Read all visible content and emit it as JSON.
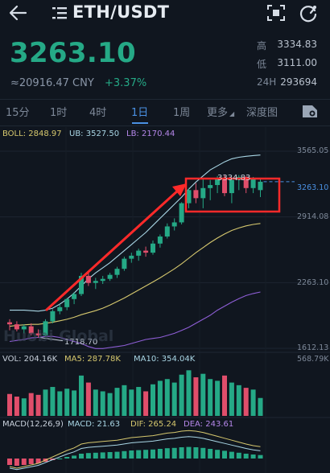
{
  "header": {
    "pair": "ETH/USDT",
    "back_icon": "arrow-left-icon",
    "menu_icon": "list-icon",
    "scan_icon": "scan-icon",
    "refresh_icon": "refresh-icon"
  },
  "ticker": {
    "last_price": "3263.10",
    "cny_price": "≈20916.47 CNY",
    "change": "+3.37%",
    "stats": [
      {
        "label": "高",
        "value": "3334.83"
      },
      {
        "label": "低",
        "value": "3111.00"
      },
      {
        "label": "24H",
        "value": "293694"
      }
    ]
  },
  "tabs": [
    {
      "label": "15分",
      "active": false
    },
    {
      "label": "1时",
      "active": false
    },
    {
      "label": "4时",
      "active": false
    },
    {
      "label": "1日",
      "active": true
    },
    {
      "label": "1周",
      "active": false
    },
    {
      "label": "更多",
      "active": false
    },
    {
      "label": "深度图",
      "active": false
    }
  ],
  "indicators": {
    "boll": "BOLL: 2848.97",
    "ub": "UB: 3527.50",
    "lb": "LB: 2170.44",
    "vol": "VOL: 204.16K",
    "ma5": "MA5: 287.78K",
    "ma10": "MA10: 354.04K",
    "macd_params": "MACD(12,26,9)",
    "macd": "MACD: 21.63",
    "dif": "DIF: 265.24",
    "dea": "DEA: 243.61"
  },
  "axis": {
    "price_ticks": [
      "3565.05",
      "2914.08",
      "2263.10",
      "1612.13"
    ],
    "volume_max": "568.79K",
    "current_price_tag": "3263.10",
    "high_label": "3334.83",
    "low_label": "1718.70"
  },
  "watermark": "Huobi Global",
  "colors": {
    "up": "#25a986",
    "down": "#e04e6b",
    "accent": "#4a90e2",
    "boll_mid": "#d6c86e",
    "boll_up": "#a9d6e5",
    "boll_low": "#8e5ed6",
    "annotation": "#ff2a2a"
  },
  "chart_data": {
    "type": "candlestick",
    "y_range": [
      1612.13,
      3565.05
    ],
    "candles": [
      {
        "o": 1870,
        "h": 1900,
        "l": 1790,
        "c": 1850
      },
      {
        "o": 1850,
        "h": 1880,
        "l": 1780,
        "c": 1800
      },
      {
        "o": 1800,
        "h": 1850,
        "l": 1760,
        "c": 1830
      },
      {
        "o": 1830,
        "h": 1860,
        "l": 1740,
        "c": 1760
      },
      {
        "o": 1760,
        "h": 1800,
        "l": 1718.7,
        "c": 1740
      },
      {
        "o": 1740,
        "h": 1900,
        "l": 1730,
        "c": 1880
      },
      {
        "o": 1880,
        "h": 2000,
        "l": 1860,
        "c": 1980
      },
      {
        "o": 1980,
        "h": 2050,
        "l": 1950,
        "c": 2020
      },
      {
        "o": 2020,
        "h": 2110,
        "l": 1990,
        "c": 2100
      },
      {
        "o": 2100,
        "h": 2170,
        "l": 2050,
        "c": 2150
      },
      {
        "o": 2150,
        "h": 2360,
        "l": 2130,
        "c": 2330
      },
      {
        "o": 2330,
        "h": 2380,
        "l": 2230,
        "c": 2260
      },
      {
        "o": 2260,
        "h": 2310,
        "l": 2200,
        "c": 2280
      },
      {
        "o": 2280,
        "h": 2330,
        "l": 2250,
        "c": 2300
      },
      {
        "o": 2300,
        "h": 2360,
        "l": 2280,
        "c": 2340
      },
      {
        "o": 2340,
        "h": 2420,
        "l": 2310,
        "c": 2400
      },
      {
        "o": 2400,
        "h": 2520,
        "l": 2380,
        "c": 2500
      },
      {
        "o": 2500,
        "h": 2560,
        "l": 2460,
        "c": 2530
      },
      {
        "o": 2530,
        "h": 2600,
        "l": 2480,
        "c": 2580
      },
      {
        "o": 2580,
        "h": 2620,
        "l": 2520,
        "c": 2560
      },
      {
        "o": 2560,
        "h": 2680,
        "l": 2540,
        "c": 2650
      },
      {
        "o": 2650,
        "h": 2740,
        "l": 2610,
        "c": 2720
      },
      {
        "o": 2720,
        "h": 2850,
        "l": 2700,
        "c": 2820
      },
      {
        "o": 2820,
        "h": 2900,
        "l": 2780,
        "c": 2860
      },
      {
        "o": 2860,
        "h": 3060,
        "l": 2840,
        "c": 3050
      },
      {
        "o": 3050,
        "h": 3200,
        "l": 3000,
        "c": 3180
      },
      {
        "o": 3180,
        "h": 3250,
        "l": 3050,
        "c": 3100
      },
      {
        "o": 3100,
        "h": 3300,
        "l": 3000,
        "c": 3200
      },
      {
        "o": 3200,
        "h": 3280,
        "l": 3080,
        "c": 3230
      },
      {
        "o": 3230,
        "h": 3320,
        "l": 3150,
        "c": 3290
      },
      {
        "o": 3290,
        "h": 3334.83,
        "l": 3120,
        "c": 3150
      },
      {
        "o": 3150,
        "h": 3300,
        "l": 3050,
        "c": 3280
      },
      {
        "o": 3280,
        "h": 3330,
        "l": 3180,
        "c": 3310
      },
      {
        "o": 3310,
        "h": 3320,
        "l": 3150,
        "c": 3200
      },
      {
        "o": 3200,
        "h": 3310,
        "l": 3150,
        "c": 3290
      },
      {
        "o": 3180,
        "h": 3300,
        "l": 3111.0,
        "c": 3263.1
      }
    ],
    "boll_mid": [
      1830,
      1840,
      1845,
      1850,
      1850,
      1860,
      1870,
      1885,
      1900,
      1920,
      1945,
      1965,
      1985,
      2010,
      2040,
      2075,
      2110,
      2150,
      2190,
      2230,
      2270,
      2310,
      2355,
      2400,
      2450,
      2505,
      2560,
      2610,
      2660,
      2705,
      2745,
      2780,
      2805,
      2825,
      2840,
      2848.97
    ],
    "boll_up": [
      1990,
      1990,
      1990,
      1985,
      1980,
      1990,
      2010,
      2050,
      2100,
      2160,
      2230,
      2300,
      2360,
      2410,
      2460,
      2520,
      2580,
      2640,
      2700,
      2760,
      2830,
      2900,
      2970,
      3040,
      3110,
      3190,
      3260,
      3320,
      3380,
      3420,
      3460,
      3490,
      3505,
      3515,
      3522,
      3527.5
    ],
    "boll_low": [
      1680,
      1690,
      1700,
      1715,
      1720,
      1730,
      1730,
      1720,
      1700,
      1680,
      1660,
      1630,
      1610,
      1610,
      1620,
      1630,
      1640,
      1660,
      1680,
      1700,
      1710,
      1720,
      1740,
      1760,
      1790,
      1820,
      1860,
      1900,
      1940,
      1990,
      2030,
      2070,
      2105,
      2135,
      2155,
      2170.44
    ],
    "volume_max": 568.79,
    "volumes": [
      250,
      220,
      200,
      260,
      240,
      300,
      330,
      280,
      310,
      290,
      460,
      380,
      300,
      280,
      260,
      320,
      350,
      300,
      330,
      280,
      360,
      400,
      420,
      380,
      470,
      520,
      440,
      480,
      420,
      400,
      460,
      380,
      350,
      320,
      300,
      204.16
    ],
    "macd_hist": [
      -40,
      -45,
      -40,
      -35,
      -30,
      -20,
      -10,
      0,
      10,
      18,
      30,
      34,
      36,
      38,
      40,
      42,
      46,
      50,
      52,
      54,
      56,
      60,
      64,
      66,
      70,
      72,
      70,
      66,
      60,
      54,
      48,
      42,
      36,
      30,
      25,
      21.63
    ]
  }
}
